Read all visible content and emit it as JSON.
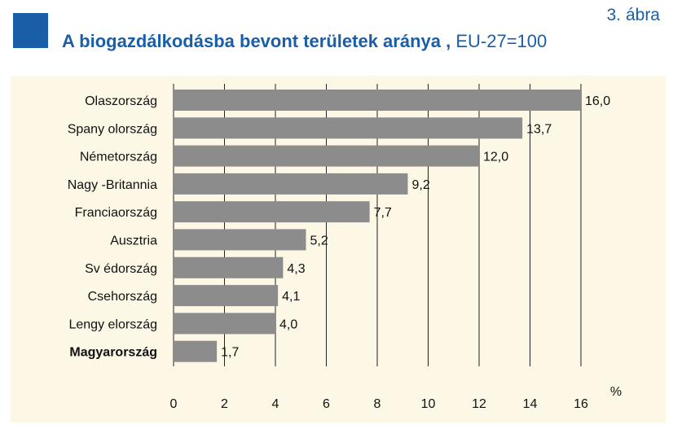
{
  "figure_number": "3. ábra",
  "title": {
    "main": "A biogazdálkodásba bevont területek aránya ,",
    "sub": "EU-27=100"
  },
  "colors": {
    "accent": "#1b5ea8",
    "bar": "#8c8c8c",
    "panel_bg": "#fdf7e6",
    "grid": "#222222"
  },
  "chart_data": {
    "type": "bar",
    "orientation": "horizontal",
    "categories": [
      "Olaszország",
      "Spany olország",
      "Németország",
      "Nagy -Britannia",
      "Franciaország",
      "Ausztria",
      "Sv édország",
      "Csehország",
      "Lengy elország",
      "Magyarország"
    ],
    "values": [
      16.0,
      13.7,
      12.0,
      9.2,
      7.7,
      5.2,
      4.3,
      4.1,
      4.0,
      1.7
    ],
    "value_labels": [
      "16,0",
      "13,7",
      "12,0",
      "9,2",
      "7,7",
      "5,2",
      "4,3",
      "4,1",
      "4,0",
      "1,7"
    ],
    "bold_categories": [
      "Magyarország"
    ],
    "xlim": [
      0,
      16
    ],
    "xticks": [
      0,
      2,
      4,
      6,
      8,
      10,
      12,
      14,
      16
    ],
    "xlabel": "%",
    "grid": "vertical"
  }
}
